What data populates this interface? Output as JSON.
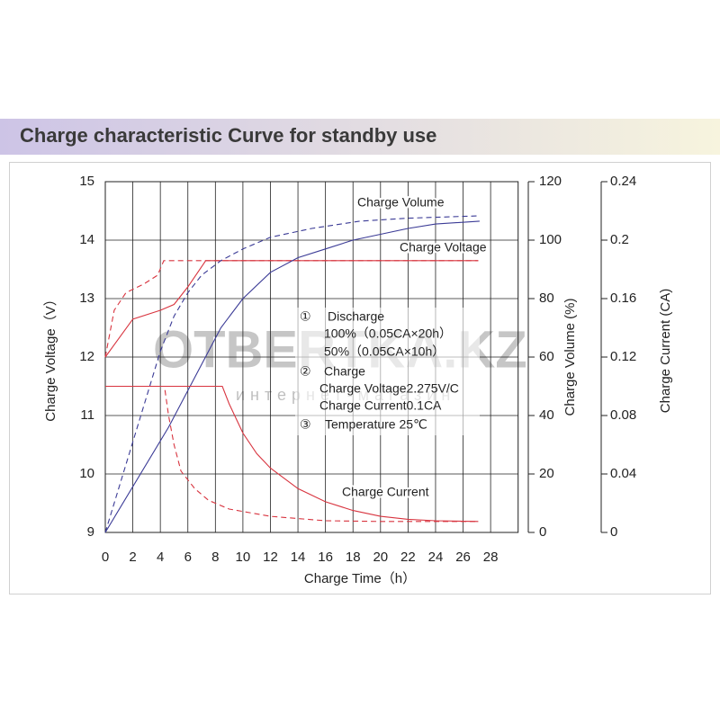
{
  "chart_data": {
    "type": "line",
    "title": "Charge characteristic Curve for standby use",
    "x_label": "Charge Time（h）",
    "y_label": "Charge Voltage（V）",
    "y2_label": "Charge Volume (%)",
    "y3_label": "Charge Current (CA)",
    "xlim": [
      0,
      30
    ],
    "xticks": [
      0,
      2,
      4,
      6,
      8,
      10,
      12,
      14,
      16,
      18,
      20,
      22,
      24,
      26,
      28
    ],
    "ylim": [
      9,
      15
    ],
    "yticks": [
      9,
      10,
      11,
      12,
      13,
      14,
      15
    ],
    "y2lim": [
      0,
      120
    ],
    "y2ticks": [
      0,
      20,
      40,
      60,
      80,
      100,
      120
    ],
    "y3lim": [
      0,
      0.24
    ],
    "y3ticks": [
      0,
      0.04,
      0.08,
      0.12,
      0.16,
      0.2,
      0.24
    ],
    "grid": true,
    "series": [
      {
        "color": "#d8343f",
        "dash": false,
        "axis": "y",
        "x": [
          0,
          2,
          4,
          5,
          6,
          7.3,
          27.1
        ],
        "values": [
          12.0,
          12.65,
          12.8,
          12.9,
          13.2,
          13.65,
          13.65
        ]
      },
      {
        "color": "#d8343f",
        "dash": true,
        "axis": "y",
        "x": [
          0,
          0.65,
          1.5,
          2.8,
          3.8,
          4.25,
          27.1
        ],
        "values": [
          12.0,
          12.8,
          13.1,
          13.25,
          13.4,
          13.65,
          13.65
        ]
      },
      {
        "color": "#3b3b96",
        "dash": false,
        "axis": "y2",
        "x": [
          0,
          4.6,
          8.4,
          10,
          12,
          14,
          16,
          18,
          20,
          22,
          24,
          27.2
        ],
        "values": [
          0,
          36,
          70,
          80,
          89,
          94,
          97,
          100,
          102,
          104,
          105.5,
          106.5
        ]
      },
      {
        "color": "#3b3b96",
        "dash": true,
        "axis": "y2",
        "x": [
          0,
          2,
          4,
          5,
          6,
          7,
          8.4,
          10,
          12,
          15,
          18.5,
          22,
          27.1
        ],
        "values": [
          0,
          31,
          62,
          74,
          82,
          88,
          93,
          97,
          101,
          104,
          106.5,
          107.5,
          108.3
        ]
      },
      {
        "color": "#d8343f",
        "dash": false,
        "axis": "y3",
        "x": [
          0,
          8.5,
          9,
          10,
          11,
          12,
          14,
          16,
          18,
          20,
          22,
          24,
          27.1
        ],
        "values": [
          0.1,
          0.1,
          0.088,
          0.068,
          0.054,
          0.044,
          0.03,
          0.021,
          0.015,
          0.011,
          0.009,
          0.008,
          0.0075
        ]
      },
      {
        "color": "#d8343f",
        "dash": true,
        "axis": "y3",
        "x": [
          0,
          4.3,
          4.6,
          5,
          5.5,
          6.5,
          7.5,
          9,
          12,
          16,
          20,
          27.1
        ],
        "values": [
          0.1,
          0.1,
          0.08,
          0.06,
          0.042,
          0.03,
          0.022,
          0.016,
          0.011,
          0.008,
          0.0075,
          0.0075
        ]
      }
    ],
    "annotations": [
      "Charge Volume",
      "Charge Voltage",
      "Charge Current"
    ],
    "notes": [
      "①",
      "Discharge",
      "100%（0.05CA×20h）",
      "50%（0.05CA×10h）",
      "②",
      "Charge",
      "Charge Voltage2.275V/C",
      "Charge Current0.1CA",
      "③",
      "Temperature 25℃"
    ],
    "watermark": [
      "OTBERTKA.KZ",
      "интернет-магазин"
    ]
  }
}
